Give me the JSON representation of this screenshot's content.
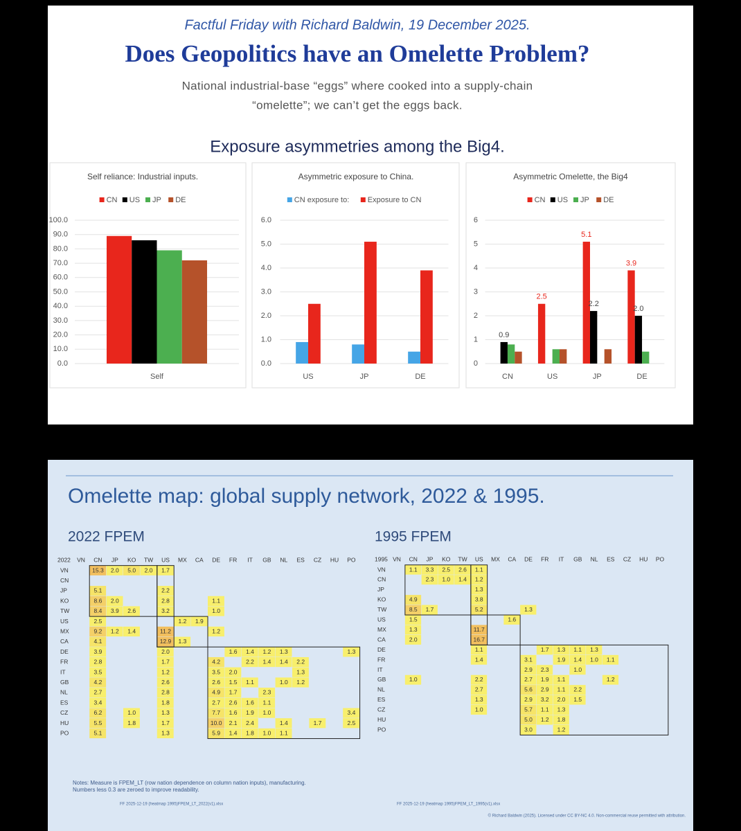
{
  "header": {
    "kicker": "Factful Friday with Richard Baldwin, 19 December 2025.",
    "title": "Does Geopolitics have an Omelette Problem?",
    "description": [
      "National industrial-base “eggs” where cooked into a supply-chain",
      "“omelette”; we can’t get the eggs back."
    ],
    "section": "Exposure asymmetries among the Big4."
  },
  "chart_data": [
    {
      "type": "bar",
      "title": "Self reliance: Industrial inputs.",
      "categories": [
        "Self"
      ],
      "series": [
        {
          "name": "CN",
          "color": "#e8261c",
          "values": [
            89
          ]
        },
        {
          "name": "US",
          "color": "#000000",
          "values": [
            86
          ]
        },
        {
          "name": "JP",
          "color": "#4caf50",
          "values": [
            79
          ]
        },
        {
          "name": "DE",
          "color": "#b5522a",
          "values": [
            72
          ]
        }
      ],
      "ylim": [
        0,
        100
      ],
      "yticks": [
        {
          "value": 0,
          "label": "0.0"
        },
        {
          "value": 10,
          "label": "10.0"
        },
        {
          "value": 20,
          "label": "20.0"
        },
        {
          "value": 30,
          "label": "30.0"
        },
        {
          "value": 40,
          "label": "40.0"
        },
        {
          "value": 50,
          "label": "50.0"
        },
        {
          "value": 60,
          "label": "60.0"
        },
        {
          "value": 70,
          "label": "70.0"
        },
        {
          "value": 80,
          "label": "80.0"
        },
        {
          "value": 90,
          "label": "90.0"
        },
        {
          "value": 100,
          "label": "100.0"
        }
      ],
      "grid": true
    },
    {
      "type": "bar",
      "title": "Asymmetric exposure to China.",
      "categories": [
        "US",
        "JP",
        "DE"
      ],
      "series": [
        {
          "name": "CN exposure to:",
          "color": "#45a5e6",
          "values": [
            0.9,
            0.8,
            0.5
          ]
        },
        {
          "name": "Exposure to CN",
          "color": "#e8261c",
          "values": [
            2.5,
            5.1,
            3.9
          ]
        }
      ],
      "ylim": [
        0,
        6
      ],
      "yticks": [
        {
          "value": 0,
          "label": "0.0"
        },
        {
          "value": 1,
          "label": "1.0"
        },
        {
          "value": 2,
          "label": "2.0"
        },
        {
          "value": 3,
          "label": "3.0"
        },
        {
          "value": 4,
          "label": "4.0"
        },
        {
          "value": 5,
          "label": "5.0"
        },
        {
          "value": 6,
          "label": "6.0"
        }
      ],
      "grid": true
    },
    {
      "type": "bar",
      "title": "Asymmetric Omelette, the Big4",
      "categories": [
        "CN",
        "US",
        "JP",
        "DE"
      ],
      "series": [
        {
          "name": "CN",
          "color": "#e8261c",
          "values": [
            null,
            2.5,
            5.1,
            3.9
          ],
          "value_labels": [
            null,
            "2.5",
            "5.1",
            "3.9"
          ]
        },
        {
          "name": "US",
          "color": "#000000",
          "values": [
            0.9,
            null,
            2.2,
            2.0
          ],
          "value_labels": [
            "0.9",
            null,
            "2.2",
            "2.0"
          ]
        },
        {
          "name": "JP",
          "color": "#4caf50",
          "values": [
            0.8,
            0.6,
            null,
            0.5
          ]
        },
        {
          "name": "DE",
          "color": "#b5522a",
          "values": [
            0.5,
            0.6,
            0.6,
            null
          ]
        }
      ],
      "ylim": [
        0,
        6
      ],
      "yticks": [
        0,
        1,
        2,
        3,
        4,
        5,
        6
      ],
      "grid": true
    }
  ],
  "map": {
    "title": "Omelette map: global supply network, 2022 & 1995.",
    "notes": [
      "Notes: Measure is FPEM_LT (row nation dependence on column nation inputs), manufacturing.",
      "Numbers less 0.3 are zeroed to improve readability."
    ],
    "copyright": "© Richard Baldwin (2025). Licensed under CC BY-NC 4.0. Non-commercial reuse permitted with attribution."
  },
  "heatmaps": [
    {
      "title": "2022 FPEM",
      "corner": "2022",
      "source": "FF 2025-12-19 (heatmap 1995)FPEM_LT_2022(v1).xlsx",
      "columns": [
        "VN",
        "CN",
        "JP",
        "KO",
        "TW",
        "US",
        "MX",
        "CA",
        "DE",
        "FR",
        "IT",
        "GB",
        "NL",
        "ES",
        "CZ",
        "HU",
        "PO"
      ],
      "rows": [
        {
          "label": "VN",
          "cells": [
            null,
            "15.3",
            "2.0",
            "5.0",
            "2.0",
            "1.7",
            null,
            null,
            null,
            null,
            null,
            null,
            null,
            null,
            null,
            null,
            null
          ]
        },
        {
          "label": "CN",
          "cells": [
            null,
            null,
            null,
            null,
            null,
            null,
            null,
            null,
            null,
            null,
            null,
            null,
            null,
            null,
            null,
            null,
            null
          ]
        },
        {
          "label": "JP",
          "cells": [
            null,
            "5.1",
            null,
            null,
            null,
            "2.2",
            null,
            null,
            null,
            null,
            null,
            null,
            null,
            null,
            null,
            null,
            null
          ]
        },
        {
          "label": "KO",
          "cells": [
            null,
            "8.6",
            "2.0",
            null,
            null,
            "2.8",
            null,
            null,
            "1.1",
            null,
            null,
            null,
            null,
            null,
            null,
            null,
            null
          ]
        },
        {
          "label": "TW",
          "cells": [
            null,
            "8.4",
            "3.9",
            "2.6",
            null,
            "3.2",
            null,
            null,
            "1.0",
            null,
            null,
            null,
            null,
            null,
            null,
            null,
            null
          ]
        },
        {
          "label": "US",
          "cells": [
            null,
            "2.5",
            null,
            null,
            null,
            null,
            "1.2",
            "1.9",
            null,
            null,
            null,
            null,
            null,
            null,
            null,
            null,
            null
          ]
        },
        {
          "label": "MX",
          "cells": [
            null,
            "9.2",
            "1.2",
            "1.4",
            null,
            "11.2",
            null,
            null,
            "1.2",
            null,
            null,
            null,
            null,
            null,
            null,
            null,
            null
          ]
        },
        {
          "label": "CA",
          "cells": [
            null,
            "4.1",
            null,
            null,
            null,
            "12.9",
            "1.3",
            null,
            null,
            null,
            null,
            null,
            null,
            null,
            null,
            null,
            null
          ]
        },
        {
          "label": "DE",
          "cells": [
            null,
            "3.9",
            null,
            null,
            null,
            "2.0",
            null,
            null,
            null,
            "1.6",
            "1.4",
            "1.2",
            "1.3",
            null,
            null,
            null,
            "1.3"
          ]
        },
        {
          "label": "FR",
          "cells": [
            null,
            "2.8",
            null,
            null,
            null,
            "1.7",
            null,
            null,
            "4.2",
            null,
            "2.2",
            "1.4",
            "1.4",
            "2.2",
            null,
            null,
            null
          ]
        },
        {
          "label": "IT",
          "cells": [
            null,
            "3.5",
            null,
            null,
            null,
            "1.2",
            null,
            null,
            "3.5",
            "2.0",
            null,
            null,
            null,
            "1.3",
            null,
            null,
            null
          ]
        },
        {
          "label": "GB",
          "cells": [
            null,
            "4.2",
            null,
            null,
            null,
            "2.6",
            null,
            null,
            "2.6",
            "1.5",
            "1.1",
            null,
            "1.0",
            "1.2",
            null,
            null,
            null
          ]
        },
        {
          "label": "NL",
          "cells": [
            null,
            "2.7",
            null,
            null,
            null,
            "2.8",
            null,
            null,
            "4.9",
            "1.7",
            null,
            "2.3",
            null,
            null,
            null,
            null,
            null
          ]
        },
        {
          "label": "ES",
          "cells": [
            null,
            "3.4",
            null,
            null,
            null,
            "1.8",
            null,
            null,
            "2.7",
            "2.6",
            "1.6",
            "1.1",
            null,
            null,
            null,
            null,
            null
          ]
        },
        {
          "label": "CZ",
          "cells": [
            null,
            "6.2",
            null,
            "1.0",
            null,
            "1.3",
            null,
            null,
            "7.7",
            "1.6",
            "1.9",
            "1.0",
            null,
            null,
            null,
            null,
            "3.4"
          ]
        },
        {
          "label": "HU",
          "cells": [
            null,
            "5.5",
            null,
            "1.8",
            null,
            "1.7",
            null,
            null,
            "10.0",
            "2.1",
            "2.4",
            null,
            "1.4",
            null,
            "1.7",
            null,
            "2.5"
          ]
        },
        {
          "label": "PO",
          "cells": [
            null,
            "5.1",
            null,
            null,
            null,
            "1.3",
            null,
            null,
            "5.9",
            "1.4",
            "1.8",
            "1.0",
            "1.1",
            null,
            null,
            null,
            null
          ]
        }
      ]
    },
    {
      "title": "1995 FPEM",
      "corner": "1995",
      "source": "FF 2025-12-19 (heatmap 1995)FPEM_LT_1995(v1).xlsx",
      "columns": [
        "VN",
        "CN",
        "JP",
        "KO",
        "TW",
        "US",
        "MX",
        "CA",
        "DE",
        "FR",
        "IT",
        "GB",
        "NL",
        "ES",
        "CZ",
        "HU",
        "PO"
      ],
      "rows": [
        {
          "label": "VN",
          "cells": [
            null,
            "1.1",
            "3.3",
            "2.5",
            "2.6",
            "1.1",
            null,
            null,
            null,
            null,
            null,
            null,
            null,
            null,
            null,
            null,
            null
          ]
        },
        {
          "label": "CN",
          "cells": [
            null,
            null,
            "2.3",
            "1.0",
            "1.4",
            "1.2",
            null,
            null,
            null,
            null,
            null,
            null,
            null,
            null,
            null,
            null,
            null
          ]
        },
        {
          "label": "JP",
          "cells": [
            null,
            null,
            null,
            null,
            null,
            "1.3",
            null,
            null,
            null,
            null,
            null,
            null,
            null,
            null,
            null,
            null,
            null
          ]
        },
        {
          "label": "KO",
          "cells": [
            null,
            "4.9",
            null,
            null,
            null,
            "3.8",
            null,
            null,
            null,
            null,
            null,
            null,
            null,
            null,
            null,
            null,
            null
          ]
        },
        {
          "label": "TW",
          "cells": [
            null,
            "8.5",
            "1.7",
            null,
            null,
            "5.2",
            null,
            null,
            "1.3",
            null,
            null,
            null,
            null,
            null,
            null,
            null,
            null
          ]
        },
        {
          "label": "US",
          "cells": [
            null,
            "1.5",
            null,
            null,
            null,
            null,
            null,
            "1.6",
            null,
            null,
            null,
            null,
            null,
            null,
            null,
            null,
            null
          ]
        },
        {
          "label": "MX",
          "cells": [
            null,
            "1.3",
            null,
            null,
            null,
            "11.7",
            null,
            null,
            null,
            null,
            null,
            null,
            null,
            null,
            null,
            null,
            null
          ]
        },
        {
          "label": "CA",
          "cells": [
            null,
            "2.0",
            null,
            null,
            null,
            "16.7",
            null,
            null,
            null,
            null,
            null,
            null,
            null,
            null,
            null,
            null,
            null
          ]
        },
        {
          "label": "DE",
          "cells": [
            null,
            null,
            null,
            null,
            null,
            "1.1",
            null,
            null,
            null,
            "1.7",
            "1.3",
            "1.1",
            "1.3",
            null,
            null,
            null,
            null
          ]
        },
        {
          "label": "FR",
          "cells": [
            null,
            null,
            null,
            null,
            null,
            "1.4",
            null,
            null,
            "3.1",
            null,
            "1.9",
            "1.4",
            "1.0",
            "1.1",
            null,
            null,
            null
          ]
        },
        {
          "label": "IT",
          "cells": [
            null,
            null,
            null,
            null,
            null,
            null,
            null,
            null,
            "2.9",
            "2.3",
            null,
            "1.0",
            null,
            null,
            null,
            null,
            null
          ]
        },
        {
          "label": "GB",
          "cells": [
            null,
            "1.0",
            null,
            null,
            null,
            "2.2",
            null,
            null,
            "2.7",
            "1.9",
            "1.1",
            null,
            null,
            "1.2",
            null,
            null,
            null
          ]
        },
        {
          "label": "NL",
          "cells": [
            null,
            null,
            null,
            null,
            null,
            "2.7",
            null,
            null,
            "5.6",
            "2.9",
            "1.1",
            "2.2",
            null,
            null,
            null,
            null,
            null
          ]
        },
        {
          "label": "ES",
          "cells": [
            null,
            null,
            null,
            null,
            null,
            "1.3",
            null,
            null,
            "2.9",
            "3.2",
            "2.0",
            "1.5",
            null,
            null,
            null,
            null,
            null
          ]
        },
        {
          "label": "CZ",
          "cells": [
            null,
            null,
            null,
            null,
            null,
            "1.0",
            null,
            null,
            "5.7",
            "1.1",
            "1.3",
            null,
            null,
            null,
            null,
            null,
            null
          ]
        },
        {
          "label": "HU",
          "cells": [
            null,
            null,
            null,
            null,
            null,
            null,
            null,
            null,
            "5.0",
            "1.2",
            "1.8",
            null,
            null,
            null,
            null,
            null,
            null
          ]
        },
        {
          "label": "PO",
          "cells": [
            null,
            null,
            null,
            null,
            null,
            null,
            null,
            null,
            "3.0",
            null,
            "1.2",
            null,
            null,
            null,
            null,
            null,
            null
          ]
        }
      ]
    }
  ]
}
